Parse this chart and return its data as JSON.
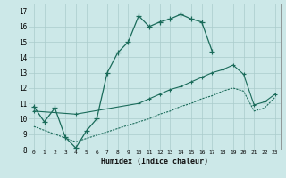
{
  "xlabel": "Humidex (Indice chaleur)",
  "bg_color": "#cce8e8",
  "grid_color": "#aacccc",
  "line_color": "#1a6b5a",
  "xlim": [
    -0.5,
    23.5
  ],
  "ylim": [
    8,
    17.5
  ],
  "xticks": [
    0,
    1,
    2,
    3,
    4,
    5,
    6,
    7,
    8,
    9,
    10,
    11,
    12,
    13,
    14,
    15,
    16,
    17,
    18,
    19,
    20,
    21,
    22,
    23
  ],
  "yticks": [
    8,
    9,
    10,
    11,
    12,
    13,
    14,
    15,
    16,
    17
  ],
  "line1_x": [
    0,
    1,
    2,
    3,
    4,
    5,
    6,
    7,
    8,
    9,
    10,
    11,
    12,
    13,
    14,
    15,
    16,
    17
  ],
  "line1_y": [
    10.8,
    9.8,
    10.7,
    8.8,
    8.1,
    9.2,
    10.0,
    13.0,
    14.3,
    15.0,
    16.7,
    16.0,
    16.3,
    16.5,
    16.8,
    16.5,
    16.3,
    14.4
  ],
  "line2_x": [
    0,
    4,
    10,
    11,
    12,
    13,
    14,
    15,
    16,
    17,
    18,
    19,
    20,
    21,
    22,
    23
  ],
  "line2_y": [
    10.5,
    10.3,
    11.0,
    11.3,
    11.6,
    11.9,
    12.1,
    12.4,
    12.7,
    13.0,
    13.2,
    13.5,
    12.9,
    10.9,
    11.1,
    11.6
  ],
  "line3_x": [
    0,
    4,
    10,
    11,
    12,
    13,
    14,
    15,
    16,
    17,
    18,
    19,
    20,
    21,
    22,
    23
  ],
  "line3_y": [
    9.5,
    8.5,
    9.8,
    10.0,
    10.3,
    10.5,
    10.8,
    11.0,
    11.3,
    11.5,
    11.8,
    12.0,
    11.8,
    10.5,
    10.7,
    11.4
  ]
}
